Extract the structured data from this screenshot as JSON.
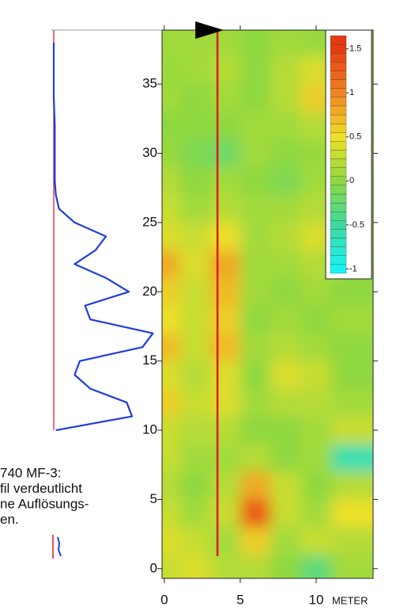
{
  "chart_data": {
    "type": "contour",
    "grid_x": [
      0,
      2,
      4,
      6,
      8,
      10,
      12
    ],
    "grid_y": [
      38,
      36,
      34,
      32,
      30,
      28,
      26,
      24,
      22,
      20,
      18,
      16,
      14,
      12,
      10,
      8,
      6,
      4,
      2,
      0
    ],
    "z": [
      [
        0.1,
        0.1,
        0.1,
        0.0,
        0.1,
        0.05,
        0.1
      ],
      [
        0.05,
        0.1,
        0.2,
        0.0,
        0.2,
        0.4,
        0.1
      ],
      [
        0.1,
        0.0,
        0.1,
        0.0,
        0.2,
        0.6,
        0.1
      ],
      [
        0.0,
        0.0,
        0.0,
        0.1,
        0.1,
        0.2,
        0.0
      ],
      [
        0.05,
        -0.1,
        -0.2,
        0.1,
        0.0,
        0.05,
        0.1
      ],
      [
        0.2,
        0.0,
        0.1,
        0.0,
        -0.1,
        0.1,
        0.0
      ],
      [
        0.3,
        0.1,
        0.2,
        0.1,
        0.1,
        0.2,
        0.0
      ],
      [
        0.4,
        0.3,
        0.5,
        0.1,
        0.2,
        0.4,
        0.1
      ],
      [
        0.8,
        0.4,
        0.8,
        0.1,
        0.1,
        0.2,
        0.0
      ],
      [
        0.6,
        0.3,
        0.7,
        0.1,
        0.0,
        0.1,
        0.0
      ],
      [
        0.5,
        0.3,
        0.6,
        0.0,
        0.1,
        0.0,
        0.1
      ],
      [
        0.7,
        0.3,
        0.7,
        0.1,
        0.2,
        0.1,
        0.0
      ],
      [
        0.4,
        0.2,
        0.4,
        0.0,
        0.4,
        0.3,
        0.0
      ],
      [
        0.6,
        0.3,
        0.4,
        0.1,
        0.2,
        0.2,
        0.1
      ],
      [
        0.3,
        0.2,
        0.2,
        0.0,
        0.0,
        0.1,
        0.3
      ],
      [
        0.3,
        0.1,
        0.1,
        0.2,
        0.0,
        0.1,
        -0.6
      ],
      [
        0.2,
        0.0,
        0.2,
        0.8,
        0.3,
        0.0,
        0.2
      ],
      [
        0.3,
        0.1,
        0.3,
        1.3,
        0.3,
        0.1,
        0.5
      ],
      [
        0.4,
        0.3,
        0.1,
        0.6,
        0.1,
        0.3,
        0.2
      ],
      [
        0.3,
        0.4,
        0.2,
        0.2,
        0.0,
        -0.3,
        0.1
      ]
    ],
    "xlim": [
      -0.15,
      13.75
    ],
    "ylim": [
      -0.7,
      38.9
    ],
    "xticks": [
      0,
      5,
      10
    ],
    "yticks": [
      0,
      5,
      10,
      15,
      20,
      25,
      30,
      35
    ],
    "xlabel": "METER",
    "colorbar": {
      "ticks": [
        1.5,
        1,
        0.5,
        0,
        -0.5,
        -1
      ],
      "colors": [
        "#e43c12",
        "#f08424",
        "#eee02a",
        "#8fd840",
        "#3fd9a0",
        "#1af2f2"
      ],
      "zlim": [
        -1.05,
        1.65
      ]
    },
    "profile_line": {
      "x": 3.5,
      "color": "#e01818"
    },
    "profile": {
      "color": "#1f3de0",
      "xlim": [
        0,
        1
      ],
      "y": [
        10,
        11,
        12,
        13,
        14,
        15,
        16,
        17,
        18,
        19,
        20,
        21,
        22,
        23,
        24,
        25,
        26,
        27,
        28,
        30,
        32,
        34,
        36,
        38
      ],
      "values": [
        0.02,
        0.75,
        0.7,
        0.35,
        0.2,
        0.25,
        0.85,
        0.95,
        0.35,
        0.3,
        0.72,
        0.5,
        0.2,
        0.4,
        0.5,
        0.2,
        0.05,
        0.02,
        0.01,
        0.01,
        0.01,
        0.0,
        0.0,
        0.0
      ]
    },
    "caption": [
      "740 MF-3:",
      "fil verdeutlicht",
      "ne Auflösungs-",
      "en."
    ]
  }
}
